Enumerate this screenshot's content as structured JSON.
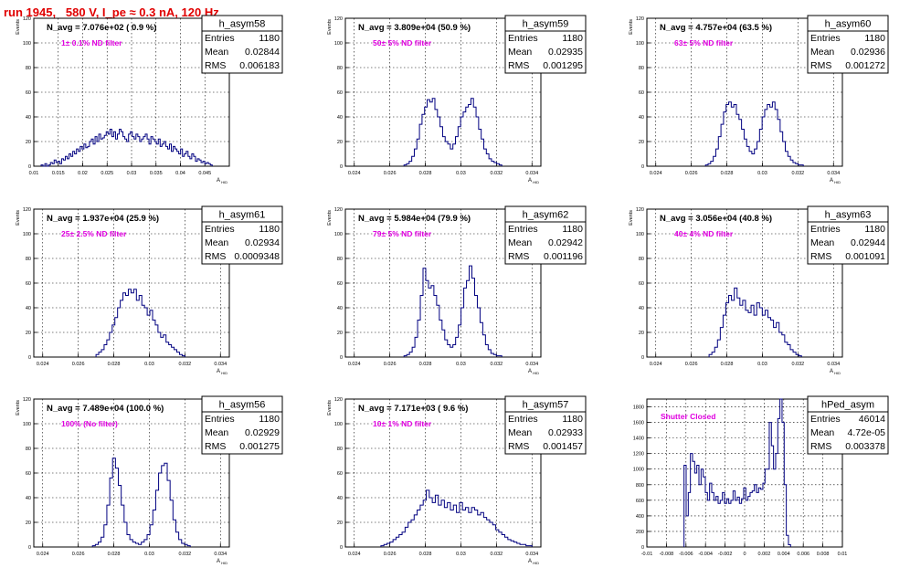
{
  "run_title": "run 1945,   580 V, I_pe ≈ 0.3 nA, 120 Hz",
  "colors": {
    "hist": "#000080",
    "navg": "#000000",
    "filter": "#e000e0",
    "title": "#e00000"
  },
  "chart_data": [
    {
      "type": "bar",
      "name": "h_asym58",
      "entries": "1180",
      "mean": "0.02844",
      "rms": "0.006183",
      "navg": "N_avg = 7.076e+02 ( 0.9 %)",
      "filter": "1± 0.1% ND filter",
      "xlabel": "A_{HID}",
      "ylabel": "Events",
      "xlim": [
        0.01,
        0.05
      ],
      "ylim": [
        0,
        120
      ],
      "xticks": [
        0.01,
        0.015,
        0.02,
        0.025,
        0.03,
        0.035,
        0.04,
        0.045
      ],
      "xtick_labels": [
        "0.01",
        "0.015",
        "0.02",
        "0.025",
        "0.03",
        "0.035",
        "0.04",
        "0.045"
      ],
      "yticks": [
        0,
        20,
        40,
        60,
        80,
        100,
        120
      ],
      "x_range": [
        0.0115,
        0.0465
      ],
      "values": [
        1,
        0,
        2,
        0,
        1,
        3,
        2,
        5,
        3,
        4,
        2,
        6,
        5,
        8,
        6,
        10,
        8,
        12,
        10,
        14,
        12,
        16,
        14,
        18,
        15,
        16,
        20,
        22,
        18,
        24,
        20,
        26,
        22,
        23,
        25,
        28,
        26,
        30,
        24,
        28,
        22,
        26,
        30,
        28,
        24,
        22,
        20,
        26,
        28,
        24,
        22,
        26,
        24,
        20,
        22,
        24,
        26,
        22,
        18,
        24,
        22,
        20,
        18,
        22,
        16,
        18,
        20,
        16,
        14,
        18,
        12,
        16,
        14,
        12,
        10,
        14,
        8,
        10,
        12,
        8,
        6,
        10,
        8,
        4,
        6,
        5,
        3,
        4,
        2,
        3,
        2,
        1
      ]
    },
    {
      "type": "bar",
      "name": "h_asym59",
      "entries": "1180",
      "mean": "0.02935",
      "rms": "0.001295",
      "navg": "N_avg = 3.809e+04 (50.9 %)",
      "filter": "50± 5% ND filter",
      "xlabel": "A_{HID}",
      "ylabel": "Events",
      "xlim": [
        0.0235,
        0.0345
      ],
      "ylim": [
        0,
        120
      ],
      "xticks": [
        0.024,
        0.026,
        0.028,
        0.03,
        0.032,
        0.034
      ],
      "xtick_labels": [
        "0.024",
        "0.026",
        "0.028",
        "0.03",
        "0.032",
        "0.034"
      ],
      "yticks": [
        0,
        20,
        40,
        60,
        80,
        100,
        120
      ],
      "x_range": [
        0.0268,
        0.0323
      ],
      "values": [
        1,
        2,
        4,
        8,
        14,
        22,
        34,
        42,
        48,
        54,
        52,
        55,
        46,
        40,
        32,
        24,
        20,
        18,
        14,
        18,
        24,
        32,
        40,
        44,
        48,
        50,
        55,
        48,
        40,
        30,
        22,
        14,
        10,
        6,
        4,
        3,
        2,
        1
      ]
    },
    {
      "type": "bar",
      "name": "h_asym60",
      "entries": "1180",
      "mean": "0.02936",
      "rms": "0.001272",
      "navg": "N_avg = 4.757e+04 (63.5 %)",
      "filter": "63± 5% ND filter",
      "xlabel": "A_{HID}",
      "ylabel": "Events",
      "xlim": [
        0.0235,
        0.0345
      ],
      "ylim": [
        0,
        120
      ],
      "xticks": [
        0.024,
        0.026,
        0.028,
        0.03,
        0.032,
        0.034
      ],
      "xtick_labels": [
        "0.024",
        "0.026",
        "0.028",
        "0.03",
        "0.032",
        "0.034"
      ],
      "yticks": [
        0,
        20,
        40,
        60,
        80,
        100,
        120
      ],
      "x_range": [
        0.0268,
        0.0323
      ],
      "values": [
        1,
        2,
        4,
        8,
        14,
        24,
        34,
        44,
        50,
        52,
        48,
        50,
        42,
        38,
        30,
        22,
        16,
        12,
        10,
        14,
        20,
        30,
        40,
        46,
        50,
        48,
        52,
        46,
        38,
        28,
        20,
        12,
        8,
        5,
        3,
        2,
        1,
        1
      ]
    },
    {
      "type": "bar",
      "name": "h_asym61",
      "entries": "1180",
      "mean": "0.02934",
      "rms": "0.0009348",
      "navg": "N_avg = 1.937e+04 (25.9 %)",
      "filter": "25± 2.5% ND filter",
      "xlabel": "A_{HID}",
      "ylabel": "Events",
      "xlim": [
        0.0235,
        0.0345
      ],
      "ylim": [
        0,
        120
      ],
      "xticks": [
        0.024,
        0.026,
        0.028,
        0.03,
        0.032,
        0.034
      ],
      "xtick_labels": [
        "0.024",
        "0.026",
        "0.028",
        "0.03",
        "0.032",
        "0.034"
      ],
      "yticks": [
        0,
        20,
        40,
        60,
        80,
        100,
        120
      ],
      "x_range": [
        0.027,
        0.032
      ],
      "values": [
        2,
        4,
        6,
        10,
        14,
        20,
        26,
        32,
        40,
        46,
        52,
        50,
        55,
        52,
        55,
        46,
        50,
        42,
        40,
        34,
        38,
        30,
        26,
        20,
        16,
        18,
        12,
        10,
        8,
        6,
        4,
        2,
        1
      ]
    },
    {
      "type": "bar",
      "name": "h_asym62",
      "entries": "1180",
      "mean": "0.02942",
      "rms": "0.001196",
      "navg": "N_avg = 5.984e+04 (79.9 %)",
      "filter": "79± 5% ND filter",
      "xlabel": "A_{HID}",
      "ylabel": "Events",
      "xlim": [
        0.0235,
        0.0345
      ],
      "ylim": [
        0,
        120
      ],
      "xticks": [
        0.024,
        0.026,
        0.028,
        0.03,
        0.032,
        0.034
      ],
      "xtick_labels": [
        "0.024",
        "0.026",
        "0.028",
        "0.03",
        "0.032",
        "0.034"
      ],
      "yticks": [
        0,
        20,
        40,
        60,
        80,
        100,
        120
      ],
      "x_range": [
        0.0268,
        0.0323
      ],
      "values": [
        1,
        2,
        4,
        8,
        16,
        30,
        50,
        72,
        62,
        56,
        58,
        50,
        42,
        30,
        22,
        14,
        10,
        8,
        10,
        16,
        26,
        40,
        56,
        62,
        74,
        64,
        50,
        40,
        28,
        18,
        10,
        6,
        3,
        2,
        1,
        1
      ]
    },
    {
      "type": "bar",
      "name": "h_asym63",
      "entries": "1180",
      "mean": "0.02944",
      "rms": "0.001091",
      "navg": "N_avg = 3.056e+04 (40.8 %)",
      "filter": "40± 4% ND filter",
      "xlabel": "A_{HID}",
      "ylabel": "Events",
      "xlim": [
        0.0235,
        0.0345
      ],
      "ylim": [
        0,
        120
      ],
      "xticks": [
        0.024,
        0.026,
        0.028,
        0.03,
        0.032,
        0.034
      ],
      "xtick_labels": [
        "0.024",
        "0.026",
        "0.028",
        "0.03",
        "0.032",
        "0.034"
      ],
      "yticks": [
        0,
        20,
        40,
        60,
        80,
        100,
        120
      ],
      "x_range": [
        0.027,
        0.0322
      ],
      "values": [
        2,
        4,
        8,
        14,
        24,
        34,
        44,
        50,
        46,
        56,
        48,
        42,
        46,
        38,
        36,
        42,
        34,
        44,
        40,
        34,
        38,
        32,
        30,
        24,
        28,
        20,
        18,
        12,
        10,
        6,
        4,
        2,
        1
      ]
    },
    {
      "type": "bar",
      "name": "h_asym56",
      "entries": "1180",
      "mean": "0.02929",
      "rms": "0.001275",
      "navg": "N_avg = 7.489e+04 (100.0 %)",
      "filter": "100% (No filter)",
      "xlabel": "A_{HID}",
      "ylabel": "Events",
      "xlim": [
        0.0235,
        0.0345
      ],
      "ylim": [
        0,
        120
      ],
      "xticks": [
        0.024,
        0.026,
        0.028,
        0.03,
        0.032,
        0.034
      ],
      "xtick_labels": [
        "0.024",
        "0.026",
        "0.028",
        "0.03",
        "0.032",
        "0.034"
      ],
      "yticks": [
        0,
        20,
        40,
        60,
        80,
        100,
        120
      ],
      "x_range": [
        0.0268,
        0.0323
      ],
      "values": [
        1,
        2,
        4,
        8,
        18,
        34,
        56,
        72,
        64,
        50,
        34,
        20,
        10,
        6,
        4,
        3,
        2,
        4,
        6,
        10,
        18,
        30,
        46,
        60,
        66,
        68,
        54,
        38,
        22,
        12,
        6,
        3,
        2,
        1
      ]
    },
    {
      "type": "bar",
      "name": "h_asym57",
      "entries": "1180",
      "mean": "0.02933",
      "rms": "0.001457",
      "navg": "N_avg = 7.171e+03 ( 9.6 %)",
      "filter": "10± 1% ND filter",
      "xlabel": "A_{HID}",
      "ylabel": "Events",
      "xlim": [
        0.0235,
        0.0345
      ],
      "ylim": [
        0,
        120
      ],
      "xticks": [
        0.024,
        0.026,
        0.028,
        0.03,
        0.032,
        0.034
      ],
      "xtick_labels": [
        "0.024",
        "0.026",
        "0.028",
        "0.03",
        "0.032",
        "0.034"
      ],
      "yticks": [
        0,
        20,
        40,
        60,
        80,
        100,
        120
      ],
      "x_range": [
        0.0255,
        0.034
      ],
      "values": [
        1,
        2,
        3,
        4,
        6,
        8,
        10,
        12,
        16,
        20,
        22,
        26,
        30,
        34,
        38,
        46,
        40,
        36,
        42,
        34,
        38,
        32,
        36,
        30,
        34,
        28,
        36,
        30,
        32,
        28,
        32,
        30,
        26,
        28,
        24,
        22,
        20,
        18,
        14,
        12,
        10,
        8,
        6,
        5,
        4,
        3,
        2,
        2,
        1,
        1
      ]
    },
    {
      "type": "bar",
      "name": "hPed_asym",
      "entries": "46014",
      "mean": "4.72e-05",
      "rms": "0.003378",
      "navg": "",
      "filter": "Shutter Closed",
      "xlabel": "",
      "ylabel": "",
      "xlim": [
        -0.01,
        0.01
      ],
      "ylim": [
        0,
        1900
      ],
      "xticks": [
        -0.01,
        -0.008,
        -0.006,
        -0.004,
        -0.002,
        0,
        0.002,
        0.004,
        0.006,
        0.008,
        0.01
      ],
      "xtick_labels": [
        "-0.01",
        "-0.008",
        "-0.006",
        "-0.004",
        "-0.002",
        "0",
        "0.002",
        "0.004",
        "0.006",
        "0.008",
        "0.01"
      ],
      "yticks": [
        0,
        200,
        400,
        600,
        800,
        1000,
        1200,
        1400,
        1600,
        1800
      ],
      "x_range": [
        -0.0062,
        0.0047
      ],
      "values": [
        1050,
        400,
        700,
        1200,
        1100,
        950,
        1050,
        800,
        1000,
        900,
        700,
        600,
        820,
        700,
        600,
        650,
        560,
        600,
        700,
        560,
        620,
        560,
        600,
        720,
        600,
        640,
        560,
        620,
        760,
        600,
        650,
        700,
        720,
        800,
        700,
        760,
        740,
        820,
        1000,
        1000,
        1600,
        1300,
        1000,
        1200,
        1650,
        1900,
        1600,
        800,
        150,
        30
      ]
    }
  ]
}
